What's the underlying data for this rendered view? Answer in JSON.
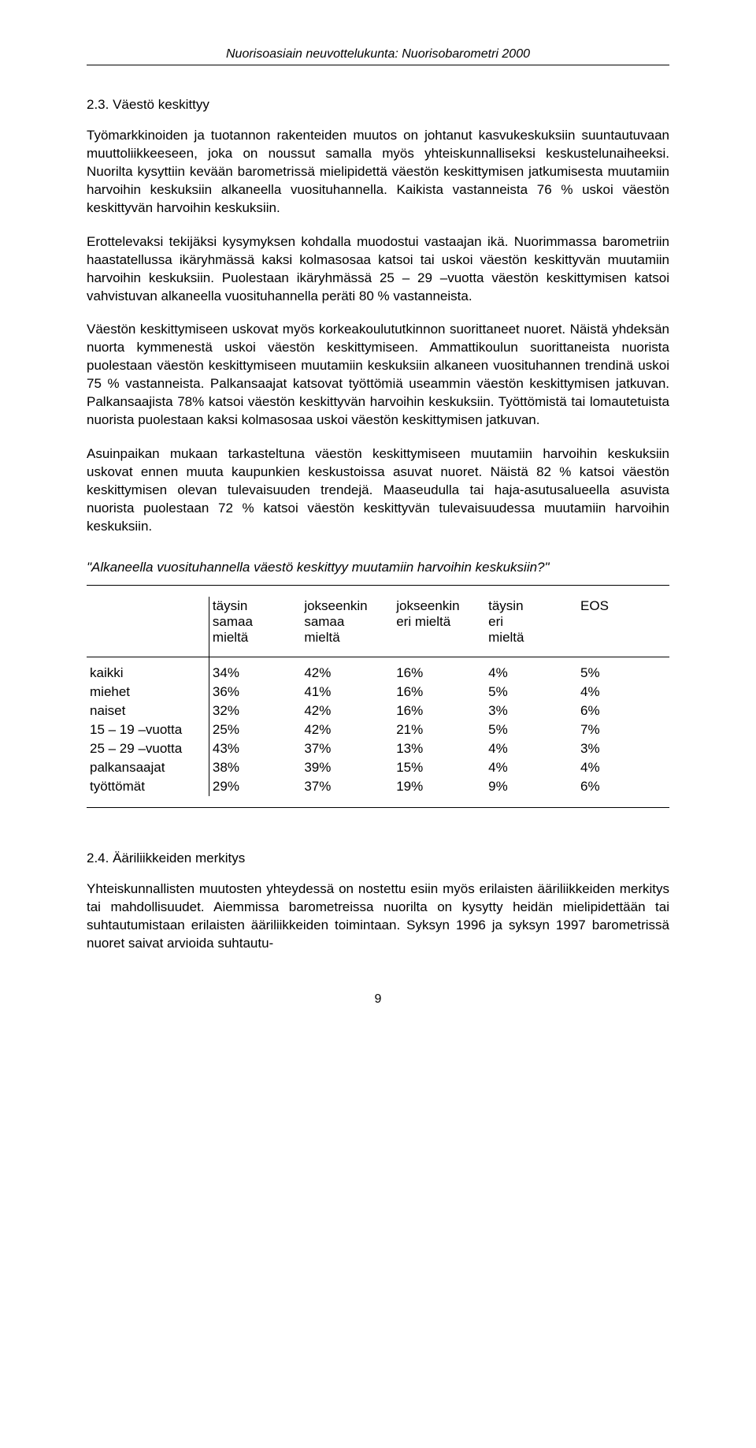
{
  "header": "Nuorisoasiain neuvottelukunta: Nuorisobarometri 2000",
  "section_2_3": {
    "heading": "2.3. Väestö keskittyy",
    "p1": "Työmarkkinoiden ja tuotannon rakenteiden muutos on johtanut kasvukeskuksiin suuntautuvaan muuttoliikkeeseen, joka on noussut samalla myös yhteiskunnalliseksi keskustelunaiheeksi. Nuorilta kysyttiin kevään barometrissä mielipidettä väestön keskittymisen jatkumisesta muutamiin harvoihin keskuksiin alkaneella vuosituhannella. Kaikista vastanneista 76 % uskoi väestön keskittyvän harvoihin keskuksiin.",
    "p2": "Erottelevaksi tekijäksi kysymyksen kohdalla muodostui vastaajan ikä. Nuorimmassa barometriin haastatellussa ikäryhmässä kaksi kolmasosaa katsoi tai uskoi väestön keskittyvän muutamiin harvoihin keskuksiin. Puolestaan ikäryhmässä 25 – 29 –vuotta väestön keskittymisen katsoi vahvistuvan alkaneella vuosituhannella peräti 80 % vastanneista.",
    "p3": "Väestön keskittymiseen uskovat myös korkeakoulututkinnon suorittaneet nuoret. Näistä yhdeksän nuorta kymmenestä uskoi väestön keskittymiseen. Ammattikoulun suorittaneista nuorista puolestaan väestön keskittymiseen muutamiin keskuksiin alkaneen vuosituhannen trendinä uskoi 75 % vastanneista. Palkansaajat katsovat työttömiä useammin väestön keskittymisen jatkuvan. Palkansaajista 78% katsoi väestön keskittyvän harvoihin keskuksiin. Työttömistä tai lomautetuista nuorista puolestaan kaksi kolmasosaa uskoi väestön keskittymisen jatkuvan.",
    "p4": "Asuinpaikan mukaan tarkasteltuna väestön keskittymiseen muutamiin harvoihin keskuksiin uskovat ennen muuta kaupunkien keskustoissa asuvat nuoret. Näistä 82 % katsoi väestön keskittymisen olevan tulevaisuuden trendejä. Maaseudulla tai haja-asutusalueella asuvista nuorista puolestaan 72 % katsoi väestön keskittyvän tulevaisuudessa muutamiin harvoihin keskuksiin.",
    "question": "\"Alkaneella vuosituhannella väestö keskittyy muutamiin harvoihin keskuksiin?\""
  },
  "table": {
    "type": "table",
    "columns": [
      "täysin\nsamaa\nmieltä",
      "jokseenkin\nsamaa\nmieltä",
      "jokseenkin\neri mieltä",
      "täysin\neri\nmieltä",
      "EOS"
    ],
    "row_labels": [
      "kaikki",
      "miehet",
      "naiset",
      "15 – 19 –vuotta",
      "25 – 29 –vuotta",
      "palkansaajat",
      "työttömät"
    ],
    "rows": [
      [
        "34%",
        "42%",
        "16%",
        "4%",
        "5%"
      ],
      [
        "36%",
        "41%",
        "16%",
        "5%",
        "4%"
      ],
      [
        "32%",
        "42%",
        "16%",
        "3%",
        "6%"
      ],
      [
        "25%",
        "42%",
        "21%",
        "5%",
        "7%"
      ],
      [
        "43%",
        "37%",
        "13%",
        "4%",
        "3%"
      ],
      [
        "38%",
        "39%",
        "15%",
        "4%",
        "4%"
      ],
      [
        "29%",
        "37%",
        "19%",
        "9%",
        "6%"
      ]
    ],
    "font_size_pt": 13,
    "border_color": "#000000",
    "background_color": "#ffffff"
  },
  "section_2_4": {
    "heading": "2.4. Ääriliikkeiden merkitys",
    "p1": "Yhteiskunnallisten muutosten yhteydessä on nostettu esiin myös erilaisten ääriliikkeiden merkitys tai mahdollisuudet. Aiemmissa barometreissa nuorilta on kysytty heidän mielipidettään tai suhtautumistaan erilaisten ääriliikkeiden toimintaan. Syksyn 1996 ja syksyn 1997 barometrissä nuoret saivat arvioida suhtautu-"
  },
  "page_number": "9"
}
